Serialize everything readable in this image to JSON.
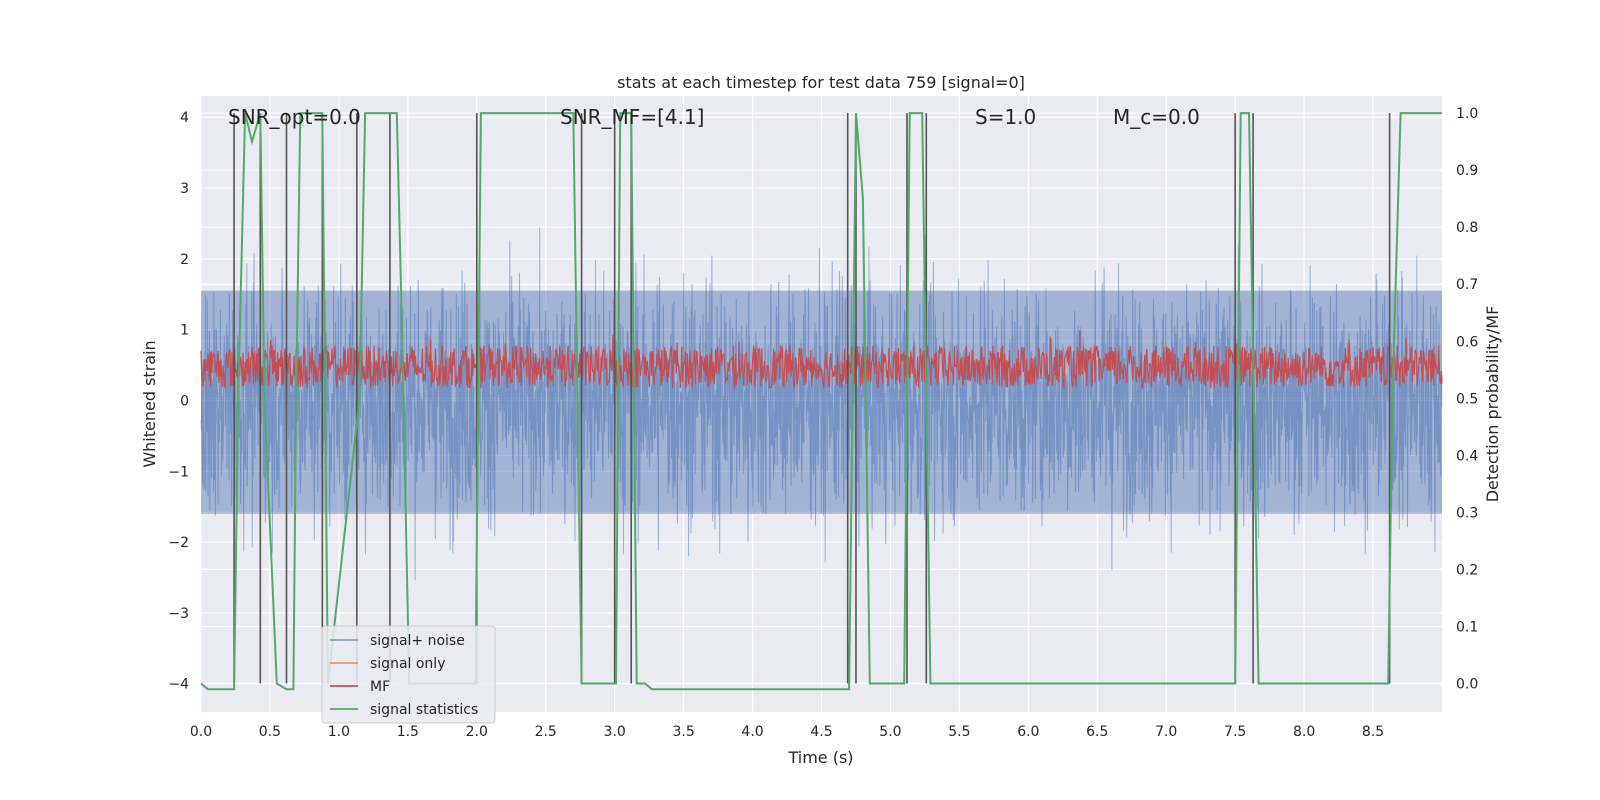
{
  "chart_data": {
    "type": "line",
    "title": "stats at each timestep for test data 759 [signal=0]",
    "xlabel": "Time (s)",
    "ylabel_left": "Whitened strain",
    "ylabel_right": "Detection probability/MF",
    "xlim": [
      0.0,
      9.0
    ],
    "ylim_left": [
      -4.4,
      4.3
    ],
    "ylim_right": [
      -0.05,
      1.03
    ],
    "x_ticks": [
      "0.0",
      "0.5",
      "1.0",
      "1.5",
      "2.0",
      "2.5",
      "3.0",
      "3.5",
      "4.0",
      "4.5",
      "5.0",
      "5.5",
      "6.0",
      "6.5",
      "7.0",
      "7.5",
      "8.0",
      "8.5"
    ],
    "y_left_ticks": [
      "4",
      "3",
      "2",
      "1",
      "0",
      "−1",
      "−2",
      "−3",
      "−4"
    ],
    "y_right_ticks": [
      "1.0",
      "0.9",
      "0.8",
      "0.7",
      "0.6",
      "0.5",
      "0.4",
      "0.3",
      "0.2",
      "0.1",
      "0.0"
    ],
    "grid": true,
    "legend_location": "lower-left",
    "annotations": [
      {
        "label": "SNR_opt=0.0",
        "x": 0.2
      },
      {
        "label": "SNR_MF=[4.1]",
        "x": 2.6
      },
      {
        "label": "S=1.0",
        "x": 5.6
      },
      {
        "label": "M_c=0.0",
        "x": 6.6
      }
    ],
    "series": [
      {
        "name": "signal+ noise",
        "axis": "left",
        "color": "#4c72b0",
        "description": "dense noise trace, roughly Gaussian between -4 and 4"
      },
      {
        "name": "signal only",
        "axis": "left",
        "color": "#dd8452"
      },
      {
        "name": "MF",
        "axis": "right",
        "color": "#c44e52",
        "description": "matched filter output fluctuating around 0.55"
      },
      {
        "name": "signal statistics",
        "axis": "right",
        "color": "#55a868",
        "x": [
          0.0,
          0.05,
          0.24,
          0.27,
          0.32,
          0.37,
          0.43,
          0.46,
          0.55,
          0.62,
          0.67,
          0.69,
          0.72,
          0.88,
          0.92,
          1.15,
          1.19,
          1.42,
          1.46,
          1.51,
          1.99,
          2.03,
          2.7,
          2.76,
          3.01,
          3.04,
          3.12,
          3.16,
          3.22,
          3.27,
          4.7,
          4.75,
          4.8,
          4.85,
          5.1,
          5.14,
          5.23,
          5.29,
          7.5,
          7.54,
          7.6,
          7.67,
          8.61,
          8.64,
          8.7,
          9.0
        ],
        "y": [
          0.0,
          -0.01,
          -0.01,
          0.5,
          1.0,
          0.95,
          1.0,
          0.5,
          0.0,
          -0.01,
          -0.01,
          0.5,
          1.0,
          1.0,
          0.0,
          0.5,
          1.0,
          1.0,
          0.6,
          0.0,
          0.0,
          1.0,
          1.0,
          0.0,
          0.0,
          1.0,
          1.0,
          0.0,
          0.0,
          -0.01,
          -0.01,
          1.0,
          0.85,
          0.0,
          0.0,
          1.0,
          1.0,
          0.0,
          0.0,
          1.0,
          1.0,
          0.0,
          0.0,
          0.5,
          1.0,
          1.0
        ]
      },
      {
        "name": "event markers",
        "axis": "right",
        "color": "#555555",
        "x": [
          0.24,
          0.43,
          0.62,
          0.88,
          1.13,
          1.37,
          2.0,
          2.76,
          3.0,
          3.12,
          4.69,
          4.75,
          5.12,
          5.26,
          7.5,
          7.63,
          8.62
        ]
      }
    ]
  }
}
